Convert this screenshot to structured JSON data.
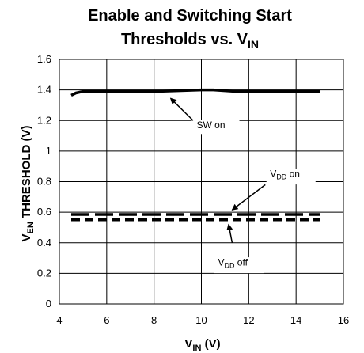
{
  "chart_data": {
    "type": "line",
    "title_line1": "Enable and Switching Start",
    "title_line2_main": "Thresholds vs. V",
    "title_line2_sub": "IN",
    "xlabel_main": "V",
    "xlabel_sub": "IN",
    "xlabel_unit": " (V)",
    "ylabel_main": "V",
    "ylabel_sub": "EN",
    "ylabel_rest": " THRESHOLD (V)",
    "xlim": [
      4,
      16
    ],
    "ylim": [
      0,
      1.6
    ],
    "xticks": [
      4,
      6,
      8,
      10,
      12,
      14,
      16
    ],
    "yticks": [
      0,
      0.2,
      0.4,
      0.6,
      0.8,
      1,
      1.2,
      1.4,
      1.6
    ],
    "xtick_labels": [
      "4",
      "6",
      "8",
      "10",
      "12",
      "14",
      "16"
    ],
    "ytick_labels": [
      "0",
      "0.2",
      "0.4",
      "0.6",
      "0.8",
      "1",
      "1.2",
      "1.4",
      "1.6"
    ],
    "grid": true,
    "series": [
      {
        "key": "sw_on",
        "style": "solid",
        "color": "#000000",
        "x": [
          4.5,
          4.7,
          5.0,
          6,
          7,
          8,
          9,
          10,
          10.5,
          11,
          11.5,
          12,
          13,
          14,
          15
        ],
        "y": [
          1.365,
          1.38,
          1.39,
          1.39,
          1.39,
          1.39,
          1.395,
          1.4,
          1.4,
          1.395,
          1.39,
          1.39,
          1.39,
          1.39,
          1.39
        ]
      },
      {
        "key": "vdd_on",
        "style": "long-dash",
        "color": "#000000",
        "x": [
          4.5,
          15
        ],
        "y": [
          0.585,
          0.585
        ]
      },
      {
        "key": "vdd_off",
        "style": "short-dash",
        "color": "#000000",
        "x": [
          4.5,
          15
        ],
        "y": [
          0.55,
          0.55
        ]
      }
    ],
    "annotations": [
      {
        "key": "sw_on",
        "text_main": "SW on",
        "text_sub": "",
        "text_rest": ""
      },
      {
        "key": "vdd_on",
        "text_main": "V",
        "text_sub": "DD",
        "text_rest": " on"
      },
      {
        "key": "vdd_off",
        "text_main": "V",
        "text_sub": "DD",
        "text_rest": " off"
      }
    ]
  }
}
